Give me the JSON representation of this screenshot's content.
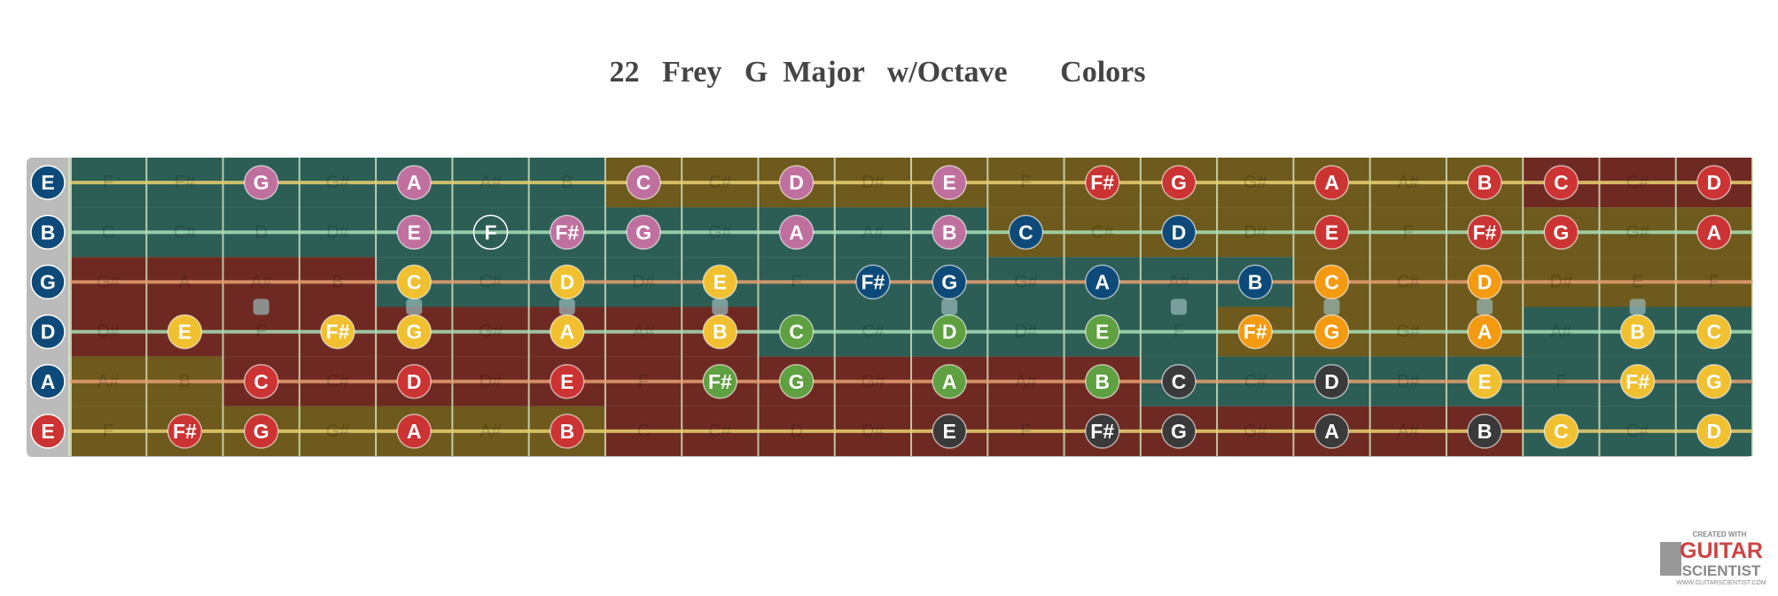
{
  "title": "22   Frey   G  Major   w/Octave       Colors",
  "strings": [
    {
      "name": "E",
      "open_color": "#0d4a7a",
      "notes": [
        "F",
        "F#",
        "G",
        "G#",
        "A",
        "A#",
        "B",
        "C",
        "C#",
        "D",
        "D#",
        "E",
        "F",
        "F#",
        "G",
        "G#",
        "A",
        "A#",
        "B",
        "C",
        "C#",
        "D"
      ],
      "colors": [
        null,
        null,
        "#c0709f",
        null,
        "#c0709f",
        null,
        null,
        "#c0709f",
        null,
        "#c0709f",
        null,
        "#c0709f",
        null,
        "#cc3333",
        "#cc3333",
        null,
        "#cc3333",
        null,
        "#cc3333",
        "#cc3333",
        null,
        "#cc3333"
      ]
    },
    {
      "name": "B",
      "open_color": "#0d4a7a",
      "notes": [
        "C",
        "C#",
        "D",
        "D#",
        "E",
        "F",
        "F#",
        "G",
        "G#",
        "A",
        "A#",
        "B",
        "C",
        "C#",
        "D",
        "D#",
        "E",
        "F",
        "F#",
        "G",
        "G#",
        "A"
      ],
      "colors": [
        null,
        null,
        null,
        null,
        "#c0709f",
        "none",
        "#c0709f",
        "#c0709f",
        null,
        "#c0709f",
        null,
        "#c0709f",
        "#0d4a7a",
        null,
        "#0d4a7a",
        null,
        "#cc3333",
        null,
        "#cc3333",
        "#cc3333",
        null,
        "#cc3333"
      ]
    },
    {
      "name": "G",
      "open_color": "#0d4a7a",
      "notes": [
        "G#",
        "A",
        "A#",
        "B",
        "C",
        "C#",
        "D",
        "D#",
        "E",
        "F",
        "F#",
        "G",
        "G#",
        "A",
        "A#",
        "B",
        "C",
        "C#",
        "D",
        "D#",
        "E",
        "F"
      ],
      "colors": [
        null,
        null,
        null,
        null,
        "#f0c030",
        null,
        "#f0c030",
        null,
        "#f0c030",
        null,
        "#0d4a7a",
        "#0d4a7a",
        null,
        "#0d4a7a",
        null,
        "#0d4a7a",
        "#f49a10",
        null,
        "#f49a10",
        null,
        null,
        null
      ]
    },
    {
      "name": "D",
      "open_color": "#0d4a7a",
      "notes": [
        "D#",
        "E",
        "F",
        "F#",
        "G",
        "G#",
        "A",
        "A#",
        "B",
        "C",
        "C#",
        "D",
        "D#",
        "E",
        "F",
        "F#",
        "G",
        "G#",
        "A",
        "A#",
        "B",
        "C"
      ],
      "colors": [
        null,
        "#f0c030",
        null,
        "#f0c030",
        "#f0c030",
        null,
        "#f0c030",
        null,
        "#f0c030",
        "#5fa040",
        null,
        "#5fa040",
        null,
        "#5fa040",
        null,
        "#f49a10",
        "#f49a10",
        null,
        "#f49a10",
        null,
        "#f0c030",
        "#f0c030"
      ]
    },
    {
      "name": "A",
      "open_color": "#0d4a7a",
      "notes": [
        "A#",
        "B",
        "C",
        "C#",
        "D",
        "D#",
        "E",
        "F",
        "F#",
        "G",
        "G#",
        "A",
        "A#",
        "B",
        "C",
        "C#",
        "D",
        "D#",
        "E",
        "F",
        "F#",
        "G"
      ],
      "colors": [
        null,
        null,
        "#cc3333",
        null,
        "#cc3333",
        null,
        "#cc3333",
        null,
        "#5fa040",
        "#5fa040",
        null,
        "#5fa040",
        null,
        "#5fa040",
        "#3a3a3a",
        null,
        "#3a3a3a",
        null,
        "#f0c030",
        null,
        "#f0c030",
        "#f0c030"
      ]
    },
    {
      "name": "E",
      "open_color": "#cc3333",
      "notes": [
        "F",
        "F#",
        "G",
        "G#",
        "A",
        "A#",
        "B",
        "C",
        "C#",
        "D",
        "D#",
        "E",
        "F",
        "F#",
        "G",
        "G#",
        "A",
        "A#",
        "B",
        "C",
        "C#",
        "D"
      ],
      "colors": [
        null,
        "#cc3333",
        "#cc3333",
        null,
        "#cc3333",
        null,
        "#cc3333",
        null,
        null,
        null,
        null,
        "#3a3a3a",
        null,
        "#3a3a3a",
        "#3a3a3a",
        null,
        "#3a3a3a",
        null,
        "#3a3a3a",
        "#f0c030",
        null,
        "#f0c030"
      ]
    }
  ],
  "logo": {
    "created": "CREATED WITH",
    "guitar": "GUITAR",
    "scientist": "SCIENTIST",
    "url": "WWW.GUITARSCIENTIST.COM"
  }
}
